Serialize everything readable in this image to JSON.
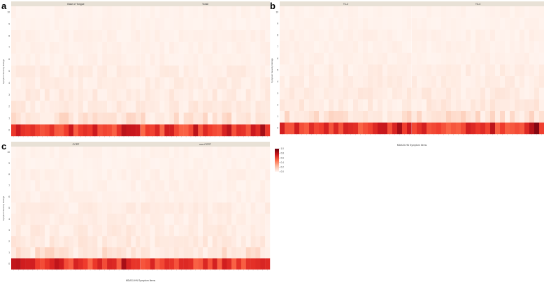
{
  "figure": {
    "ylabel": "Symptom Severity Ratings",
    "xlabel": "MDASI-HN Symptom Items",
    "colorbar": {
      "ticks": [
        "1.0",
        "0.8",
        "0.6",
        "0.4",
        "0.2",
        "0.0"
      ],
      "low_color": "#fff5f0",
      "high_color": "#67000d"
    },
    "facet_strip_color": "#e8e1d6"
  },
  "chart_data": [
    {
      "type": "heatmap",
      "panel_letter": "a",
      "facets": [
        "Base of Tongue",
        "Tonsil"
      ],
      "y_categories": [
        "0",
        "1",
        "2",
        "3",
        "4",
        "5",
        "6",
        "7",
        "8",
        "9",
        "10"
      ],
      "x_count": 27,
      "value_range": [
        0,
        1
      ],
      "severity_row_bands": {
        "0": 0.78,
        "1": 0.11,
        "2": 0.07,
        "3": 0.06,
        "4": 0.05,
        "5": 0.05,
        "6": 0.03,
        "7": 0.03,
        "8": 0.03,
        "9": 0.02,
        "10": 0.02
      }
    },
    {
      "type": "heatmap",
      "panel_letter": "b",
      "facets": [
        "T1-2",
        "T3-4"
      ],
      "y_categories": [
        "0",
        "1",
        "2",
        "3",
        "4",
        "5",
        "6",
        "7",
        "8",
        "9",
        "10"
      ],
      "x_count": 27,
      "value_range": [
        0,
        1
      ],
      "severity_row_bands": {
        "0": 0.78,
        "1": 0.11,
        "2": 0.07,
        "3": 0.06,
        "4": 0.05,
        "5": 0.05,
        "6": 0.03,
        "7": 0.03,
        "8": 0.03,
        "9": 0.02,
        "10": 0.02
      }
    },
    {
      "type": "heatmap",
      "panel_letter": "c",
      "facets": [
        "CCRT",
        "non-CCRT"
      ],
      "y_categories": [
        "0",
        "1",
        "2",
        "3",
        "4",
        "5",
        "6",
        "7",
        "8",
        "9",
        "10"
      ],
      "x_count": 27,
      "value_range": [
        0,
        1
      ],
      "severity_row_bands": {
        "0": 0.78,
        "1": 0.11,
        "2": 0.07,
        "3": 0.06,
        "4": 0.05,
        "5": 0.05,
        "6": 0.03,
        "7": 0.03,
        "8": 0.03,
        "9": 0.02,
        "10": 0.02
      }
    }
  ]
}
